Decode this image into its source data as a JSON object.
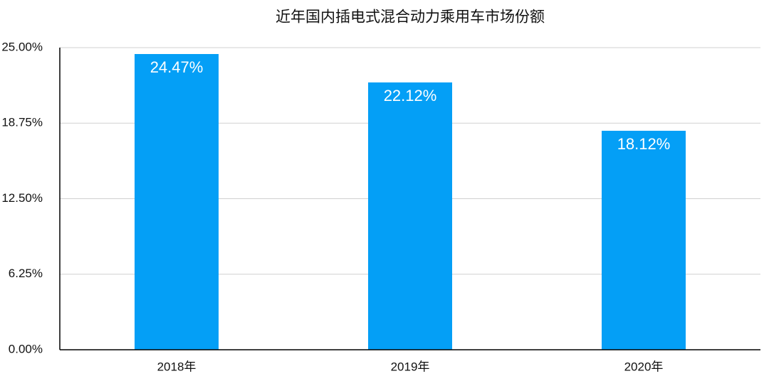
{
  "chart_data": {
    "type": "bar",
    "title": "近年国内插电式混合动力乘用车市场份额",
    "categories": [
      "2018年",
      "2019年",
      "2020年"
    ],
    "values": [
      24.47,
      22.12,
      18.12
    ],
    "value_labels": [
      "24.47%",
      "22.12%",
      "18.12%"
    ],
    "color": "#049ff6",
    "ylim": [
      0,
      25
    ],
    "yticks": [
      {
        "value": 0,
        "label": "0.00%"
      },
      {
        "value": 6.25,
        "label": "6.25%"
      },
      {
        "value": 12.5,
        "label": "12.50%"
      },
      {
        "value": 18.75,
        "label": "18.75%"
      },
      {
        "value": 25,
        "label": "25.00%"
      }
    ],
    "grid": true
  }
}
